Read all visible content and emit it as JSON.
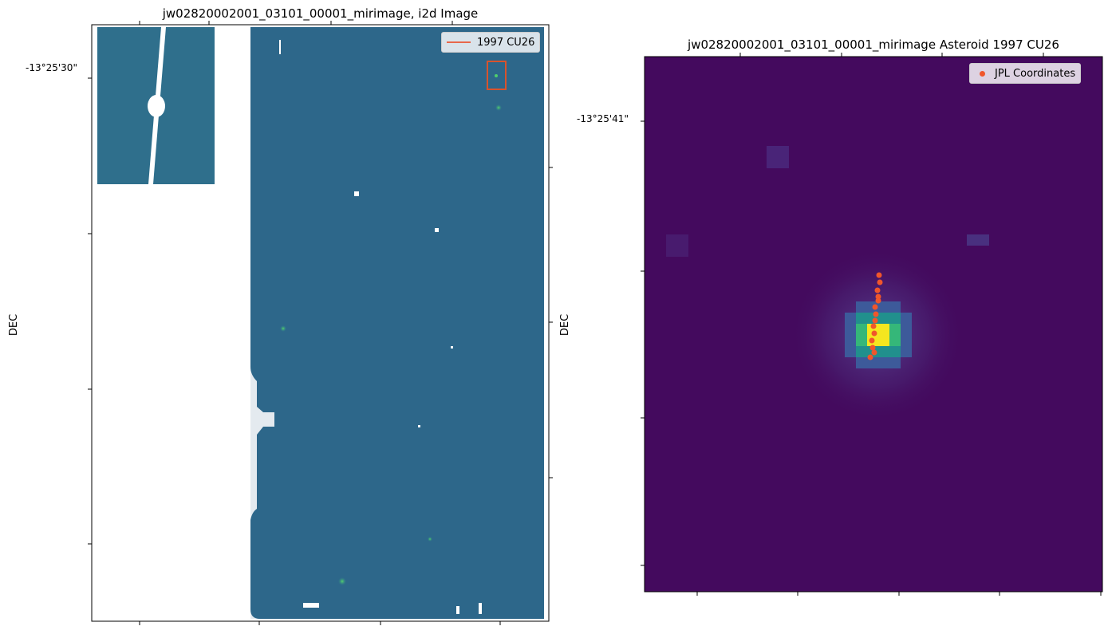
{
  "chart_data": [
    {
      "type": "heatmap",
      "title": "jw02820002001_03101_00001_mirimage,  i2d Image",
      "xlabel": "",
      "ylabel": "DEC",
      "ytick_labels": [
        "-13°25'30\""
      ],
      "colormap": "viridis",
      "legend": {
        "entries": [
          "1997 CU26"
        ],
        "placement": "top-right"
      },
      "annotations": [
        {
          "type": "rectangle",
          "label": "1997 CU26",
          "color": "#d9532c"
        }
      ]
    },
    {
      "type": "heatmap",
      "title": "jw02820002001_03101_00001_mirimage Asteroid 1997 CU26",
      "xlabel": "",
      "ylabel": "DEC",
      "ytick_labels": [
        "-13°25'41\""
      ],
      "colormap": "viridis",
      "legend": {
        "entries": [
          "JPL Coordinates"
        ],
        "placement": "top-right"
      },
      "series": [
        {
          "name": "JPL Coordinates",
          "type": "scatter",
          "color": "#f0562b"
        }
      ]
    }
  ],
  "colors": {
    "left_background": "#2f6a8c",
    "right_background": "#440a5e",
    "box": "#d9532c",
    "points": "#f0562b"
  }
}
